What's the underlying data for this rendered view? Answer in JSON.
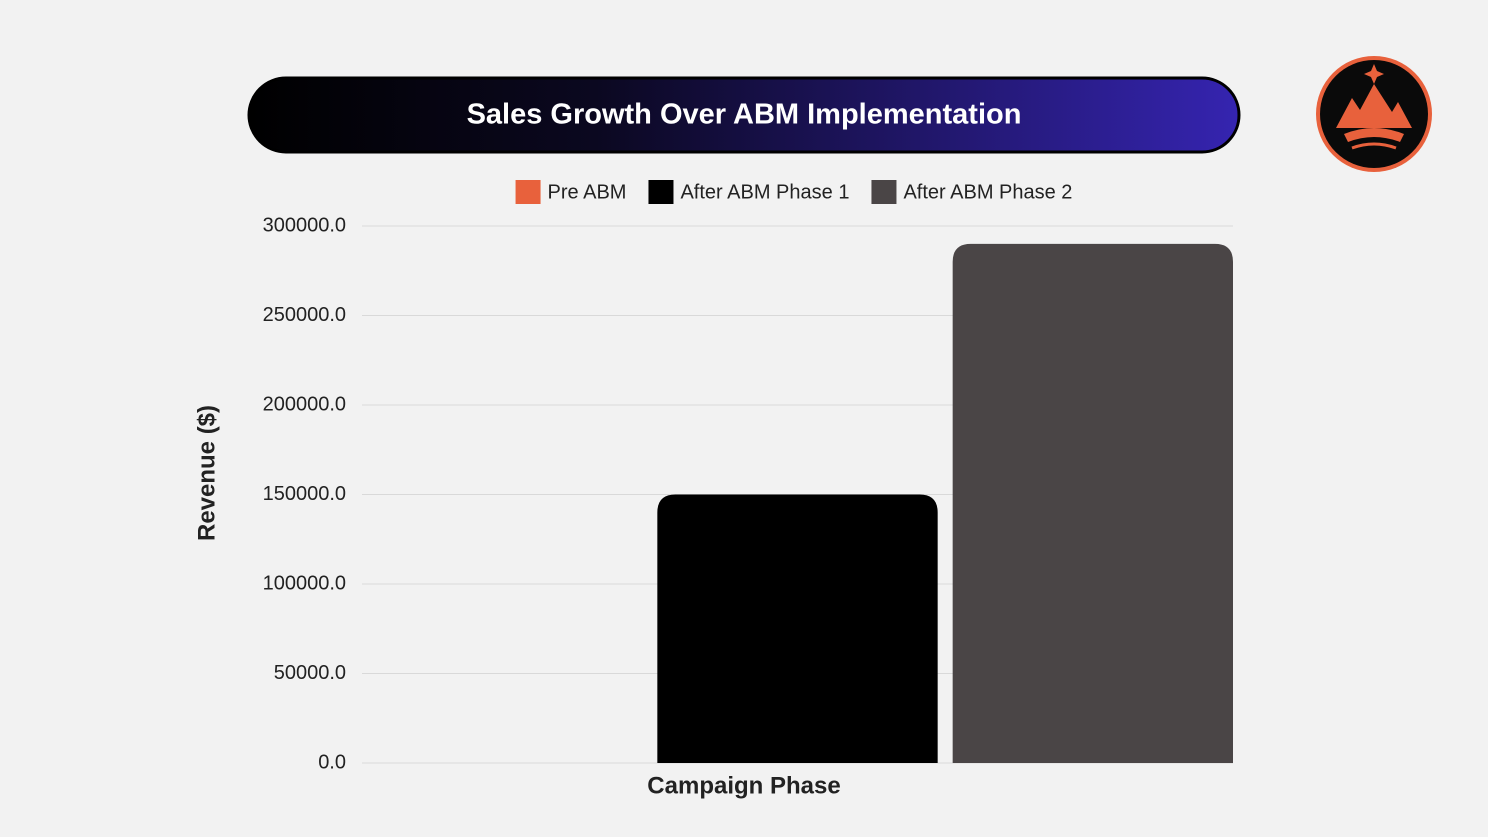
{
  "chart_data": {
    "type": "bar",
    "title": "Sales Growth Over ABM Implementation",
    "x_label": "Campaign Phase",
    "y_label": "Revenue ($)",
    "categories": [
      null
    ],
    "series": [
      {
        "name": "Pre ABM",
        "color": "#e8613c",
        "values": [
          0
        ]
      },
      {
        "name": "After ABM Phase 1",
        "color": "#000000",
        "values": [
          150000
        ]
      },
      {
        "name": "After ABM Phase 2",
        "color": "#4a4546",
        "values": [
          290000
        ]
      }
    ],
    "ylim": [
      0,
      300000
    ],
    "yticks": [
      {
        "value": 0,
        "label": "0.0"
      },
      {
        "value": 50000,
        "label": "50000.0"
      },
      {
        "value": 100000,
        "label": "100000.0"
      },
      {
        "value": 150000,
        "label": "150000.0"
      },
      {
        "value": 200000,
        "label": "200000.0"
      },
      {
        "value": 250000,
        "label": "250000.0"
      },
      {
        "value": 300000,
        "label": "300000.0"
      }
    ],
    "grid": true
  }
}
